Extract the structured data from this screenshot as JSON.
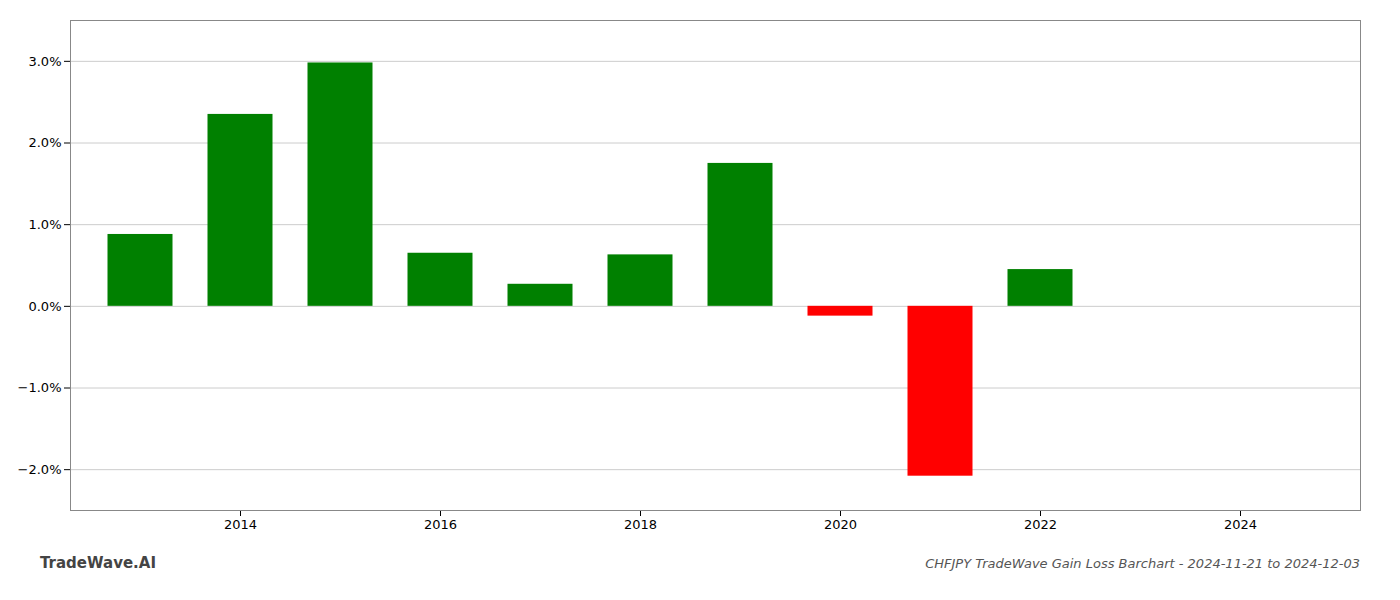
{
  "chart_data": {
    "type": "bar",
    "title": "CHFJPY TradeWave Gain Loss Barchart - 2024-11-21 to 2024-12-03",
    "annotations": [
      "TradeWave.AI"
    ],
    "x": [
      2013,
      2014,
      2015,
      2016,
      2017,
      2018,
      2019,
      2020,
      2021,
      2022,
      2023
    ],
    "values": [
      0.0088,
      0.0235,
      0.0298,
      0.0065,
      0.0027,
      0.0063,
      0.0175,
      -0.0012,
      -0.0208,
      0.0045,
      0.0
    ],
    "colors": [
      "#008000",
      "#008000",
      "#008000",
      "#008000",
      "#008000",
      "#008000",
      "#008000",
      "#ff0000",
      "#ff0000",
      "#008000",
      "#008000"
    ],
    "xlim": [
      2012.3,
      2025.2
    ],
    "xticks": [
      2014,
      2016,
      2018,
      2020,
      2022,
      2024
    ],
    "ylim": [
      -0.025,
      0.035
    ],
    "yticks": [
      {
        "value": -0.02,
        "label": "−2.0%"
      },
      {
        "value": -0.01,
        "label": "−1.0%"
      },
      {
        "value": 0.0,
        "label": "0.0%"
      },
      {
        "value": 0.01,
        "label": "1.0%"
      },
      {
        "value": 0.02,
        "label": "2.0%"
      },
      {
        "value": 0.03,
        "label": "3.0%"
      }
    ],
    "grid": true
  }
}
